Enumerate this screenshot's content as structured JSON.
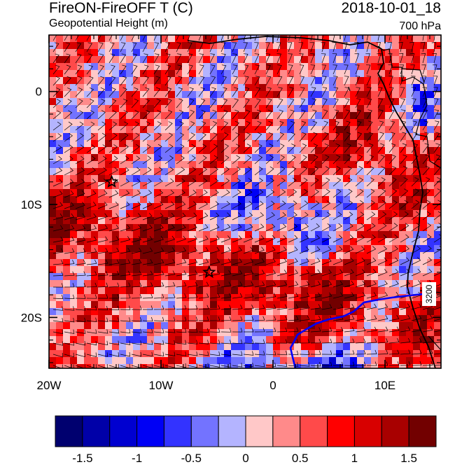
{
  "header": {
    "title_left": "FireON-FireOFF T (C)",
    "title_right": "2018-10-01_18",
    "subtitle_left": "Geopotential Height (m)",
    "subtitle_right": "700 hPa"
  },
  "map": {
    "lon_range": [
      -20,
      15
    ],
    "lat_range": [
      -24.5,
      5
    ],
    "x_ticks": [
      {
        "label": "20W",
        "value": -20
      },
      {
        "label": "10W",
        "value": -10
      },
      {
        "label": "0",
        "value": 0
      },
      {
        "label": "10E",
        "value": 10
      }
    ],
    "y_ticks": [
      {
        "label": "0",
        "value": 0
      },
      {
        "label": "10S",
        "value": -10
      },
      {
        "label": "20S",
        "value": -20
      }
    ],
    "contour_label": "3200",
    "star_markers": [
      {
        "lon": -14.4,
        "lat": -8.0
      },
      {
        "lon": -5.7,
        "lat": -16.0
      }
    ]
  },
  "colorbar": {
    "colors": [
      "#00006f",
      "#0000a8",
      "#0000d0",
      "#0000f5",
      "#3333ff",
      "#7373ff",
      "#b4b4ff",
      "#ffc8c8",
      "#ff8a8a",
      "#ff4a4a",
      "#ff0000",
      "#d80000",
      "#a80000",
      "#720000"
    ],
    "labels": [
      "-1.5",
      "-1",
      "-0.5",
      "0",
      "0.5",
      "1",
      "1.5"
    ]
  },
  "colors": {
    "contour": "#0000ff",
    "coast": "#000000"
  }
}
